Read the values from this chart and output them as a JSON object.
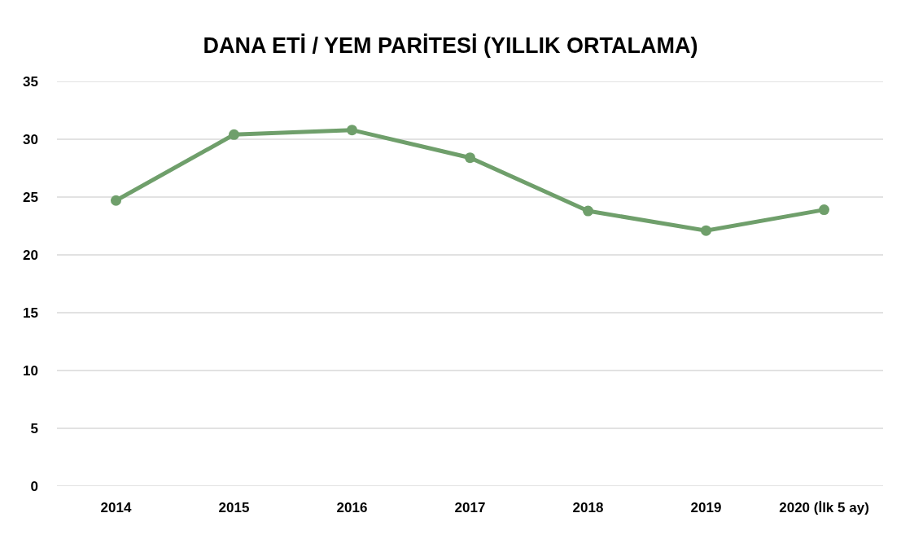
{
  "chart_data": {
    "type": "line",
    "title": "DANA ETİ / YEM PARİTESİ (YILLIK ORTALAMA)",
    "categories": [
      "2014",
      "2015",
      "2016",
      "2017",
      "2018",
      "2019",
      "2020 (İlk 5 ay)"
    ],
    "series": [
      {
        "color": "#6f9f6b",
        "values": [
          24.7,
          30.4,
          30.8,
          28.4,
          23.8,
          22.1,
          23.9
        ]
      }
    ],
    "ylim": [
      0,
      35
    ],
    "yticks": [
      0,
      5,
      10,
      15,
      20,
      25,
      30,
      35
    ],
    "grid": "y",
    "marker": "circle",
    "line_style": "solid"
  }
}
